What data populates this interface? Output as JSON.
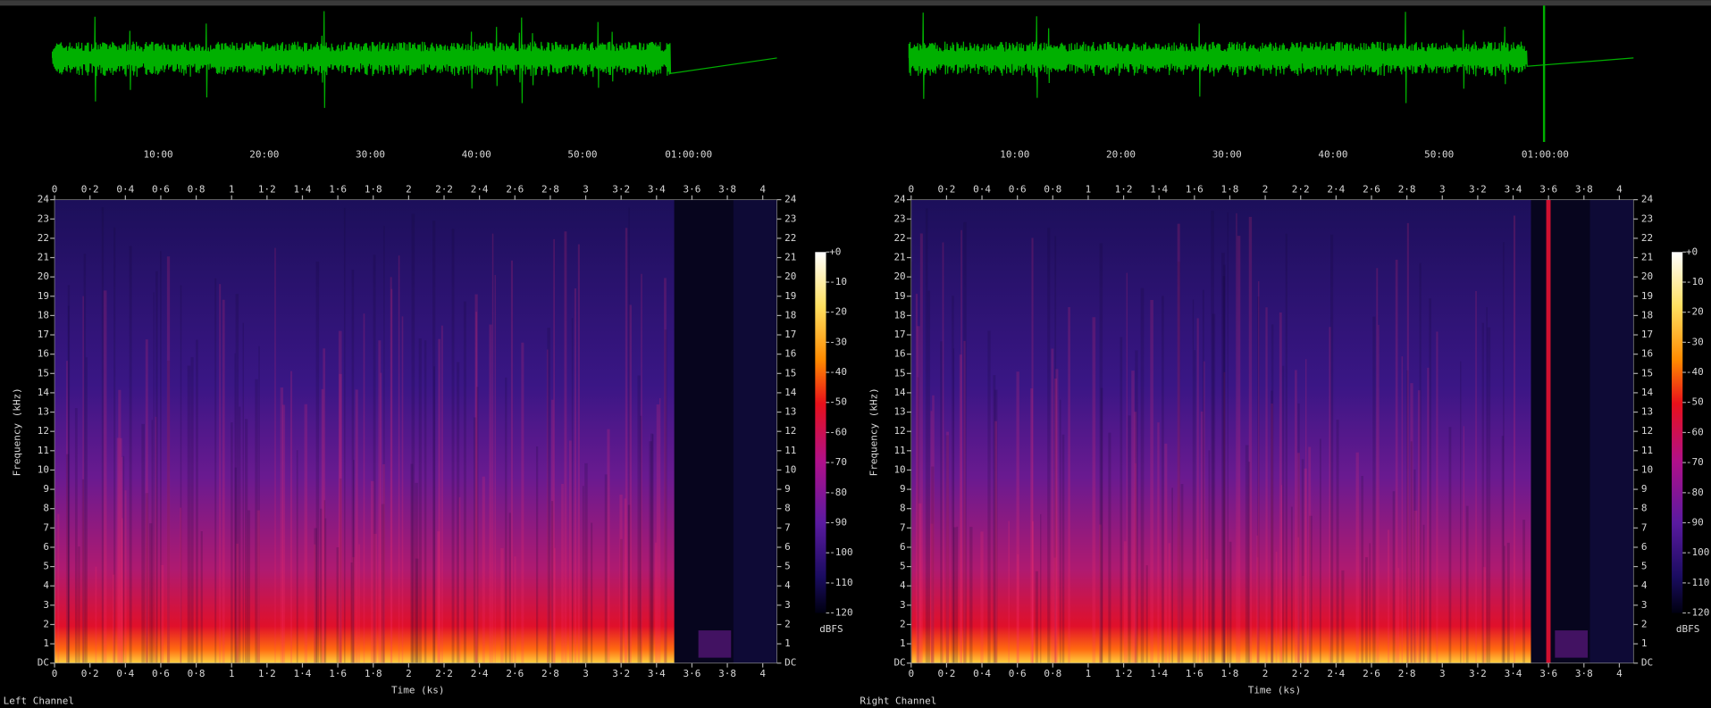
{
  "panels": [
    {
      "label": "Left Channel"
    },
    {
      "label": "Right Channel"
    }
  ],
  "waveform_ticks": [
    "10:00",
    "20:00",
    "30:00",
    "40:00",
    "50:00",
    "01:00:00"
  ],
  "time_ticks": [
    "0",
    "0·2",
    "0·4",
    "0·6",
    "0·8",
    "1",
    "1·2",
    "1·4",
    "1·6",
    "1·8",
    "2",
    "2·2",
    "2·4",
    "2·6",
    "2·8",
    "3",
    "3·2",
    "3·4",
    "3·6",
    "3·8",
    "4"
  ],
  "frequency_ticks": [
    "DC",
    "1",
    "2",
    "3",
    "4",
    "5",
    "6",
    "7",
    "8",
    "9",
    "10",
    "11",
    "12",
    "13",
    "14",
    "15",
    "16",
    "17",
    "18",
    "19",
    "20",
    "21",
    "22",
    "23",
    "24"
  ],
  "y_label": "Frequency (kHz)",
  "x_label": "Time (ks)",
  "colorbar_ticks": [
    "+0",
    "-10",
    "-20",
    "-30",
    "-40",
    "-50",
    "-60",
    "-70",
    "-80",
    "-90",
    "-100",
    "-110",
    "-120"
  ],
  "colorbar_unit": "dBFS"
}
